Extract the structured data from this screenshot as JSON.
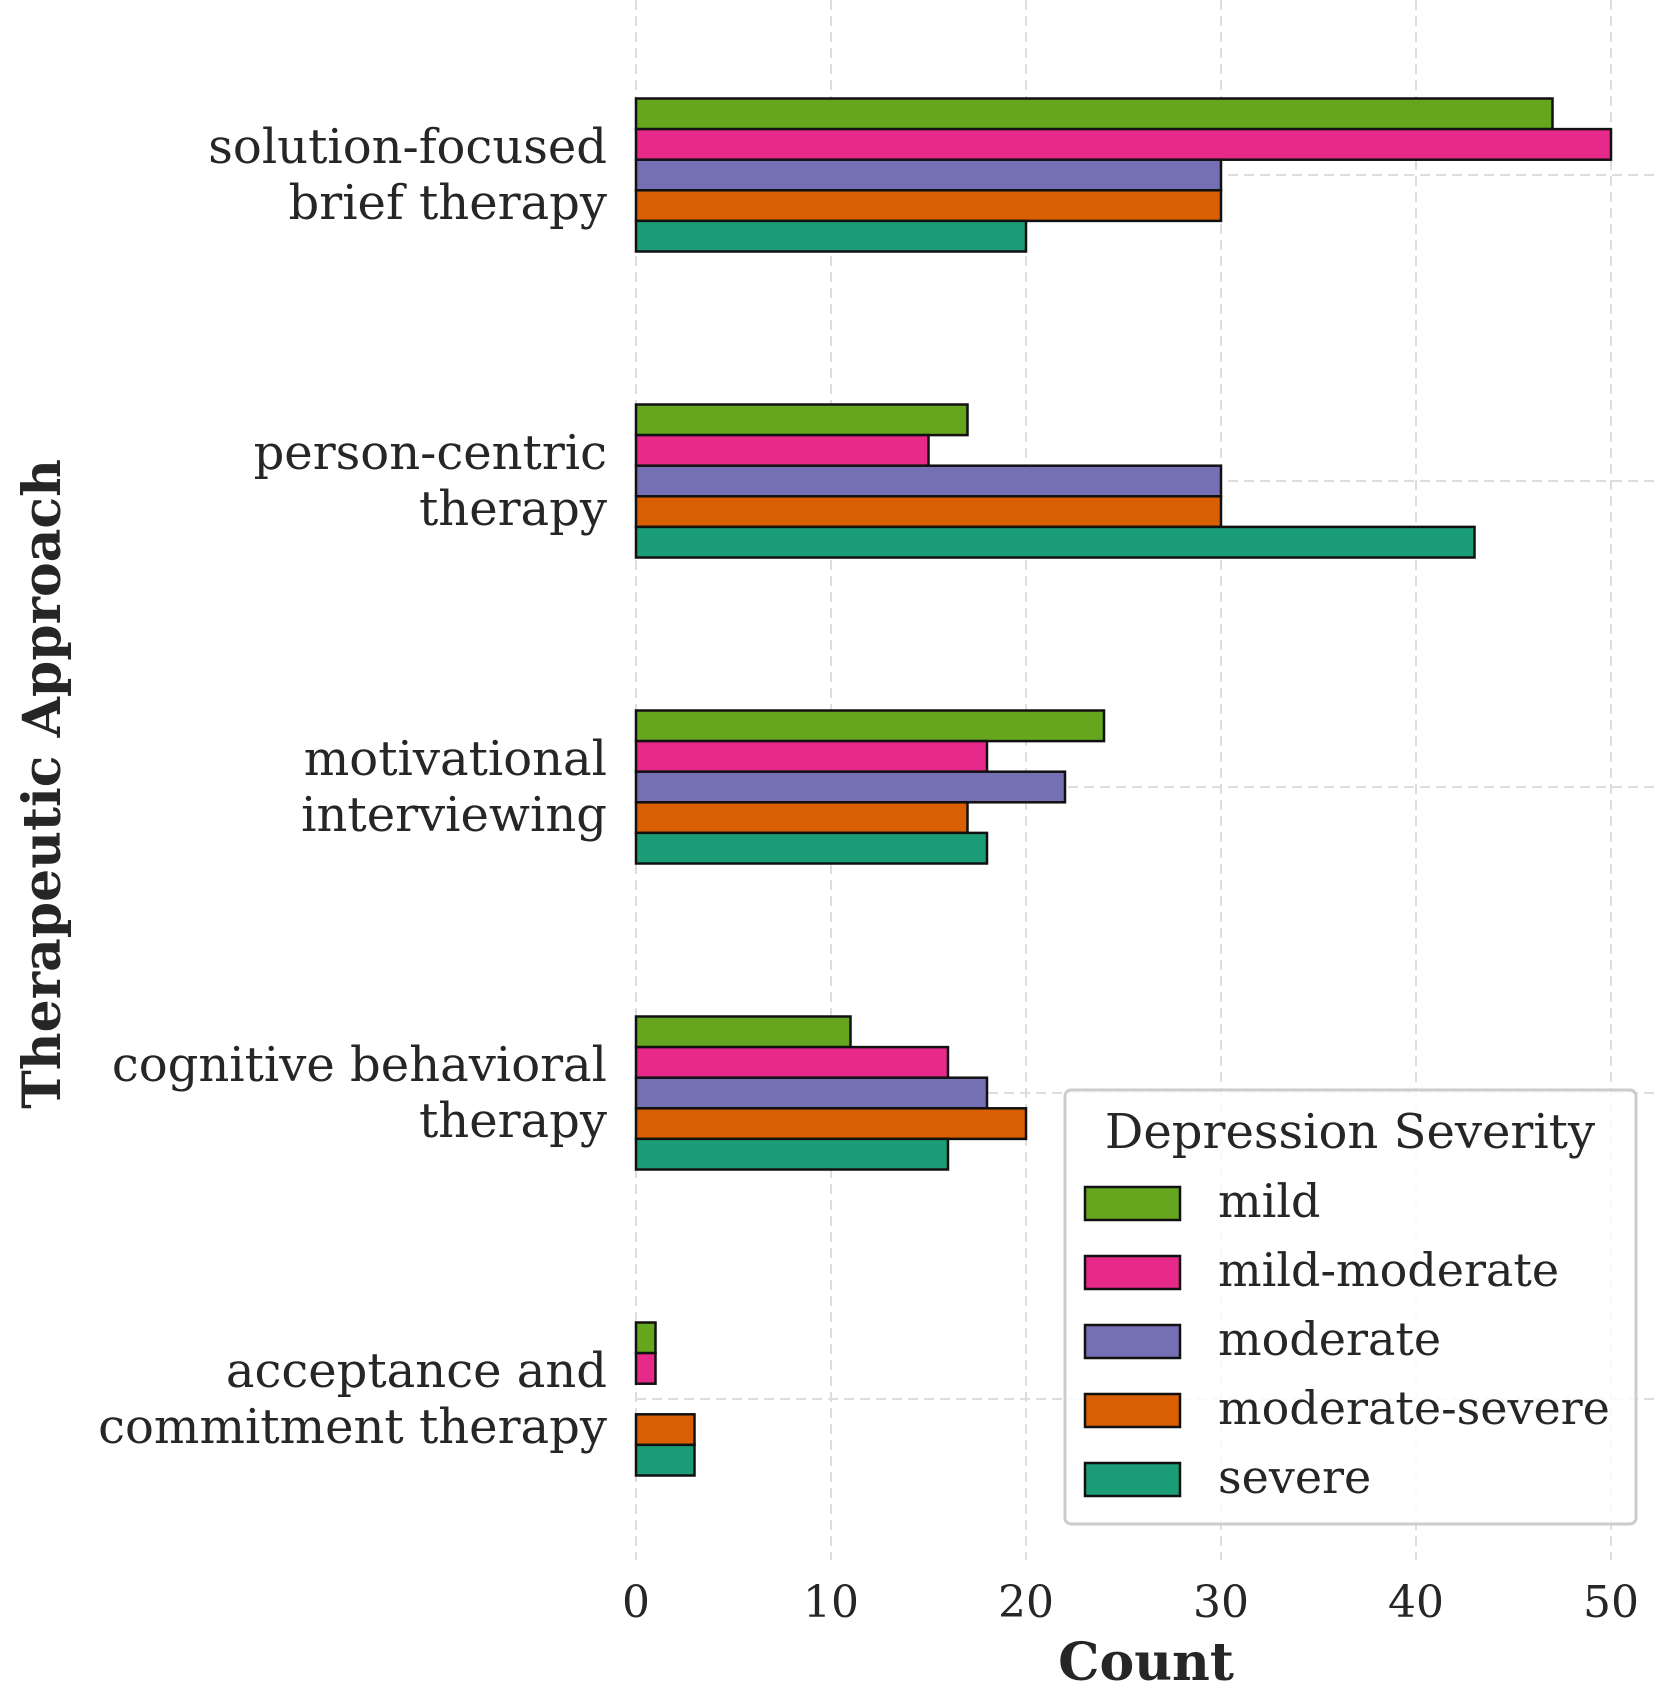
{
  "chart_data": {
    "type": "bar",
    "orientation": "horizontal",
    "title": "",
    "xlabel": "Count",
    "ylabel": "Therapeutic Approach",
    "xlim": [
      0,
      52
    ],
    "xticks": [
      0,
      10,
      20,
      30,
      40,
      50
    ],
    "grid": true,
    "categories": [
      [
        "solution-focused",
        "brief therapy"
      ],
      [
        "person-centric",
        "therapy"
      ],
      [
        "motivational",
        "interviewing"
      ],
      [
        "cognitive behavioral",
        "therapy"
      ],
      [
        "acceptance and",
        "commitment therapy"
      ]
    ],
    "series": [
      {
        "name": "mild",
        "color": "#66a61e",
        "values": [
          47,
          17,
          24,
          11,
          1
        ]
      },
      {
        "name": "mild-moderate",
        "color": "#e7298a",
        "values": [
          50,
          15,
          18,
          16,
          1
        ]
      },
      {
        "name": "moderate",
        "color": "#7570b3",
        "values": [
          30,
          30,
          22,
          18,
          0
        ]
      },
      {
        "name": "moderate-severe",
        "color": "#d95f02",
        "values": [
          30,
          30,
          17,
          20,
          3
        ]
      },
      {
        "name": "severe",
        "color": "#1b9e77",
        "values": [
          20,
          43,
          18,
          16,
          3
        ]
      }
    ],
    "legend": {
      "title": "Depression Severity",
      "position": "lower-right"
    }
  }
}
